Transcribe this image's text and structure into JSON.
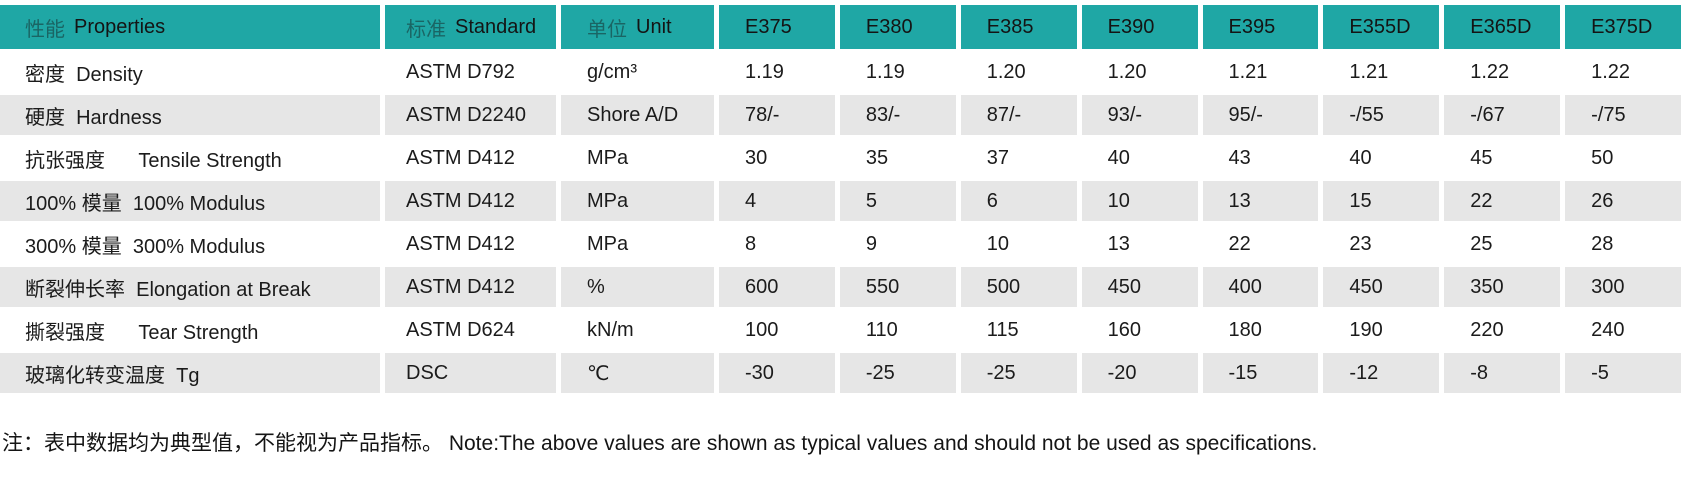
{
  "colors": {
    "header_bg": "#1fa7a5",
    "alt_row_bg": "#e6e6e6",
    "text": "#1b1b1b"
  },
  "table": {
    "header": {
      "properties": {
        "cn": "性能",
        "en": "Properties"
      },
      "standard": {
        "cn": "标准",
        "en": "Standard"
      },
      "unit": {
        "cn": "单位",
        "en": "Unit"
      },
      "grades": [
        "E375",
        "E380",
        "E385",
        "E390",
        "E395",
        "E355D",
        "E365D",
        "E375D"
      ]
    },
    "rows": [
      {
        "property": "密度  Density",
        "standard": "ASTM D792",
        "unit": "g/cm³",
        "values": [
          "1.19",
          "1.19",
          "1.20",
          "1.20",
          "1.21",
          "1.21",
          "1.22",
          "1.22"
        ]
      },
      {
        "property": "硬度  Hardness",
        "standard": "ASTM D2240",
        "unit": "Shore A/D",
        "values": [
          "78/-",
          "83/-",
          "87/-",
          "93/-",
          "95/-",
          "-/55",
          "-/67",
          "-/75"
        ]
      },
      {
        "property": "抗张强度      Tensile Strength",
        "standard": "ASTM D412",
        "unit": "MPa",
        "values": [
          "30",
          "35",
          "37",
          "40",
          "43",
          "40",
          "45",
          "50"
        ]
      },
      {
        "property": "100% 模量  100% Modulus",
        "standard": "ASTM D412",
        "unit": "MPa",
        "values": [
          "4",
          "5",
          "6",
          "10",
          "13",
          "15",
          "22",
          "26"
        ]
      },
      {
        "property": "300% 模量  300% Modulus",
        "standard": "ASTM D412",
        "unit": "MPa",
        "values": [
          "8",
          "9",
          "10",
          "13",
          "22",
          "23",
          "25",
          "28"
        ]
      },
      {
        "property": "断裂伸长率  Elongation at Break",
        "standard": "ASTM D412",
        "unit": "%",
        "values": [
          "600",
          "550",
          "500",
          "450",
          "400",
          "450",
          "350",
          "300"
        ]
      },
      {
        "property": "撕裂强度      Tear Strength",
        "standard": "ASTM D624",
        "unit": "kN/m",
        "values": [
          "100",
          "110",
          "115",
          "160",
          "180",
          "190",
          "220",
          "240"
        ]
      },
      {
        "property": "玻璃化转变温度  Tg",
        "standard": "DSC",
        "unit": "℃",
        "values": [
          "-30",
          "-25",
          "-25",
          "-20",
          "-15",
          "-12",
          "-8",
          "-5"
        ]
      }
    ],
    "note": "注：表中数据均为典型值，不能视为产品指标。 Note:The above values are shown as typical values and should not be used as specifications."
  }
}
